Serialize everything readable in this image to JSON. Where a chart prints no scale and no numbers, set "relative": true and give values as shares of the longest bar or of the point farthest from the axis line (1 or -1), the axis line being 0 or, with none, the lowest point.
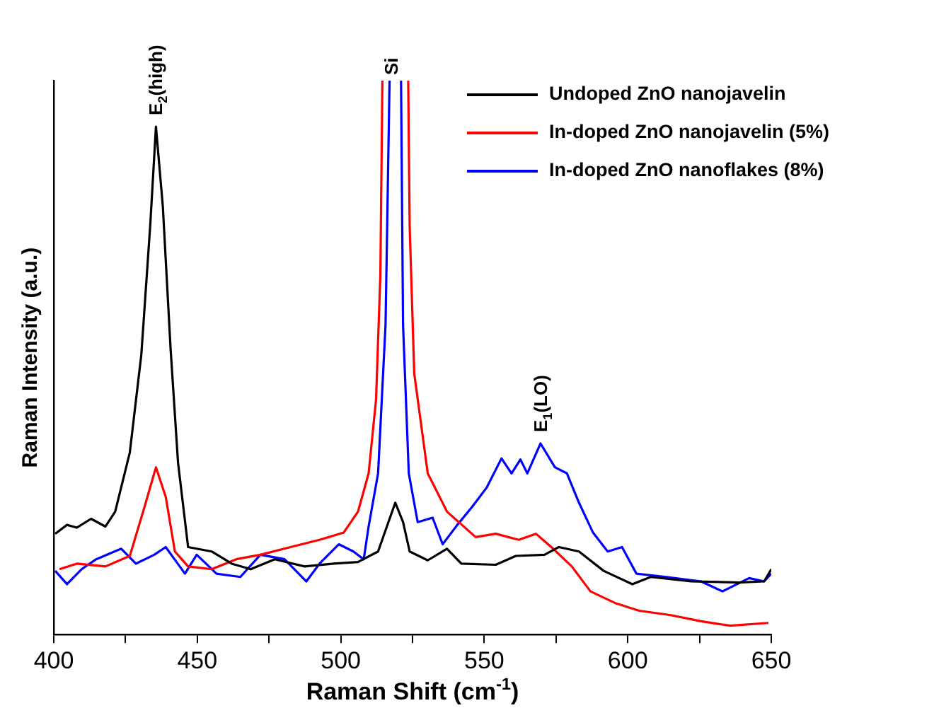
{
  "chart_data": {
    "type": "line",
    "relative": true,
    "xlabel": "Raman Shift (cm$^{-1}$)",
    "ylabel": "Raman Intensity (a.u.)",
    "xlim": [
      400,
      650
    ],
    "xticks": [
      400,
      {
        "value": 425,
        "label": null
      },
      450,
      {
        "value": 475,
        "label": null
      },
      500,
      {
        "value": 525,
        "label": null
      },
      550,
      {
        "value": 575,
        "label": null
      },
      600,
      {
        "value": 625,
        "label": null
      },
      650
    ],
    "legend": "top right",
    "grid": false,
    "marker": "none",
    "line_style": "solid",
    "annotations": [
      {
        "text": "E$_{2}$(high)",
        "x": 436,
        "y": 0.917
      },
      {
        "text": "Si",
        "x": 518,
        "y": 1
      },
      {
        "text": "E$_{1}$(LO)",
        "x": 570,
        "y": 0.345
      }
    ],
    "series": [
      {
        "name": "Undoped ZnO nanojavelin",
        "color": "#000000",
        "x": [
          400.5,
          404.6,
          408,
          413,
          418,
          421.4,
          426.5,
          430.5,
          433.6,
          435.6,
          438,
          440.7,
          443.3,
          446.8,
          455,
          462,
          468.6,
          477,
          487.4,
          497.6,
          506,
          513,
          516.6,
          519,
          521.7,
          524,
          530.3,
          537,
          542,
          554,
          561,
          571,
          576,
          583,
          591.6,
          601.6,
          608,
          622,
          638.7,
          647.5,
          650
        ],
        "values": [
          0.182,
          0.198,
          0.193,
          0.209,
          0.195,
          0.222,
          0.329,
          0.505,
          0.738,
          0.917,
          0.773,
          0.516,
          0.31,
          0.158,
          0.15,
          0.128,
          0.118,
          0.136,
          0.123,
          0.128,
          0.131,
          0.15,
          0.203,
          0.238,
          0.203,
          0.15,
          0.134,
          0.155,
          0.128,
          0.126,
          0.142,
          0.144,
          0.158,
          0.15,
          0.115,
          0.091,
          0.104,
          0.096,
          0.094,
          0.096,
          0.118
        ]
      },
      {
        "name": "In-doped ZnO nanojavelin (5%)",
        "color": "#ff0000",
        "x": [
          402,
          408,
          418,
          426.5,
          431.6,
          435.6,
          439,
          442.2,
          446.8,
          455,
          463.6,
          472,
          482.5,
          492.6,
          501,
          506,
          509.7,
          512.3,
          513.8,
          514.5,
          519,
          523.5,
          524,
          525.6,
          530.3,
          537,
          547,
          554,
          562,
          568,
          574,
          580.5,
          587,
          596,
          604,
          615,
          625.5,
          635.7,
          649
        ],
        "values": [
          0.118,
          0.128,
          0.123,
          0.142,
          0.23,
          0.302,
          0.249,
          0.15,
          0.123,
          0.118,
          0.136,
          0.144,
          0.158,
          0.171,
          0.184,
          0.222,
          0.291,
          0.425,
          0.65,
          1,
          null,
          1,
          0.738,
          0.471,
          0.291,
          0.222,
          0.176,
          0.182,
          0.171,
          0.182,
          0.155,
          0.123,
          0.078,
          0.056,
          0.043,
          0.035,
          0.024,
          0.016,
          0.021
        ]
      },
      {
        "name": "In-doped ZnO nanoflakes (8%)",
        "color": "#0000ff",
        "x": [
          400.5,
          404.6,
          409.7,
          414.8,
          423.5,
          428.6,
          435,
          439,
          445.7,
          449.8,
          456.7,
          465,
          472,
          480.4,
          488,
          492.6,
          499.3,
          504.4,
          508,
          509.7,
          513,
          515.6,
          517,
          519,
          521,
          521.7,
          523.7,
          526.8,
          532,
          535.5,
          540.6,
          545.7,
          550.8,
          556,
          559.5,
          562.6,
          565,
          569.6,
          574.6,
          578.8,
          583,
          587.9,
          593,
          598,
          603,
          613.4,
          625.5,
          633,
          642.3,
          647.5,
          650
        ],
        "values": [
          0.115,
          0.091,
          0.118,
          0.136,
          0.155,
          0.128,
          0.144,
          0.158,
          0.11,
          0.144,
          0.11,
          0.104,
          0.144,
          0.136,
          0.096,
          0.128,
          0.163,
          0.15,
          0.136,
          0.195,
          0.291,
          0.559,
          1,
          null,
          1,
          0.559,
          0.291,
          0.203,
          0.211,
          0.163,
          0.198,
          0.23,
          0.265,
          0.318,
          0.291,
          0.316,
          0.291,
          0.345,
          0.302,
          0.291,
          0.238,
          0.184,
          0.15,
          0.158,
          0.11,
          0.104,
          0.096,
          0.078,
          0.102,
          0.096,
          0.11
        ]
      }
    ]
  }
}
